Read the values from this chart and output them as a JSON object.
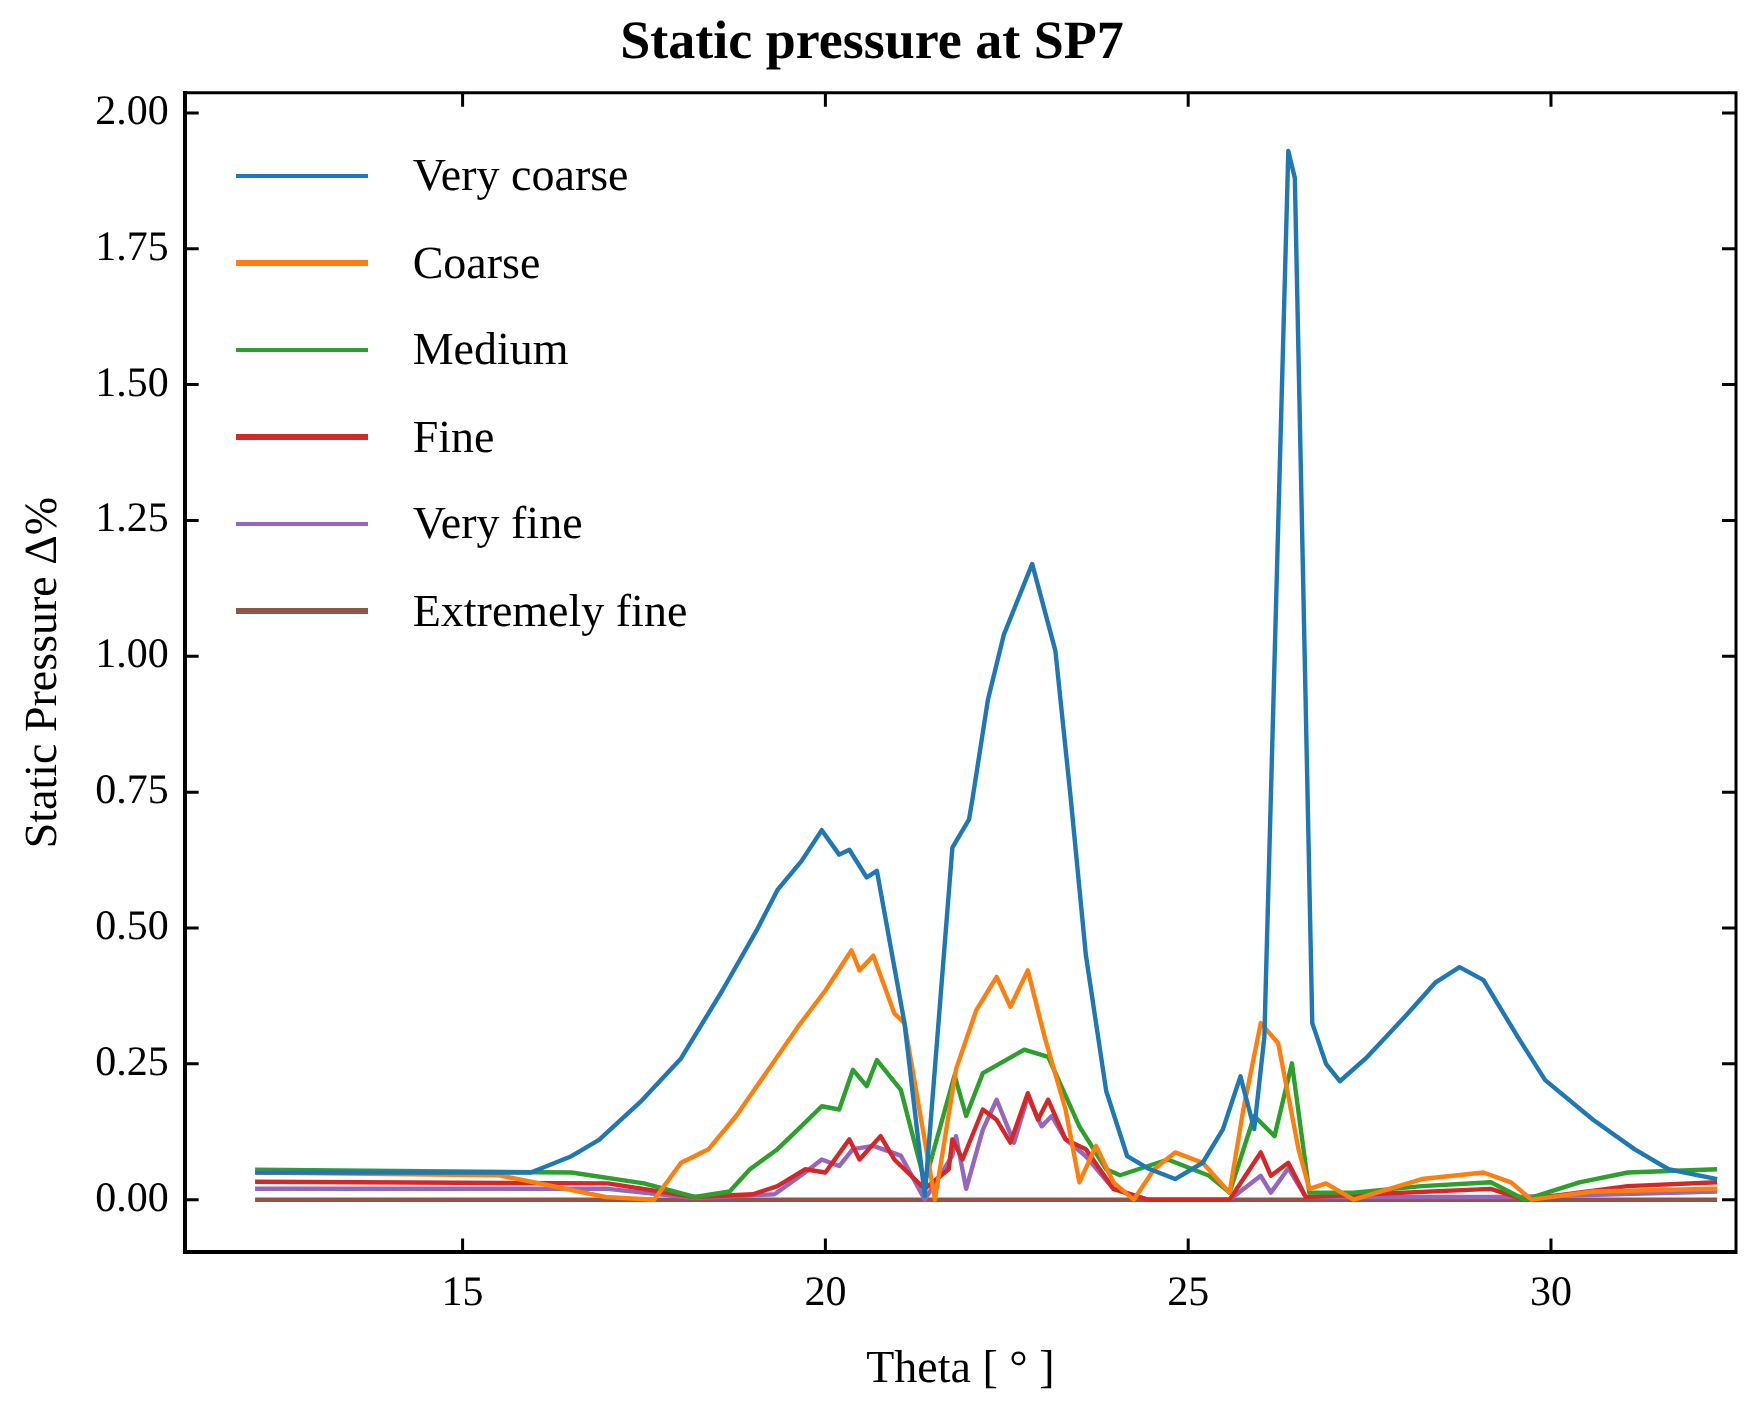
{
  "chart_data": {
    "type": "line",
    "title": "Static pressure at SP7",
    "xlabel": "Theta [ ° ]",
    "ylabel": "Static Pressure Δ%",
    "xlim": [
      11.17,
      32.55
    ],
    "xticks": [
      15,
      20,
      25,
      30
    ],
    "ylim": [
      -0.097,
      2.037
    ],
    "yticks": [
      {
        "value": 0,
        "label": "0.00"
      },
      {
        "value": 0.25,
        "label": "0.25"
      },
      {
        "value": 0.5,
        "label": "0.50"
      },
      {
        "value": 0.75,
        "label": "0.75"
      },
      {
        "value": 1,
        "label": "1.00"
      },
      {
        "value": 1.25,
        "label": "1.25"
      },
      {
        "value": 1.5,
        "label": "1.50"
      },
      {
        "value": 1.75,
        "label": "1.75"
      },
      {
        "value": 2,
        "label": "2.00"
      }
    ],
    "legend": "top left",
    "marker": "none",
    "line_style": "solid",
    "series": [
      {
        "name": "Very coarse",
        "color": "#1f77b4",
        "x": [
          12.14,
          15.94,
          16.5,
          16.88,
          17.45,
          18.01,
          18.58,
          19.05,
          19.34,
          19.67,
          19.95,
          20.19,
          20.33,
          20.57,
          20.71,
          21.09,
          21.37,
          21.75,
          21.98,
          22.03,
          22.24,
          22.46,
          22.85,
          23.17,
          23.38,
          23.59,
          23.87,
          24.16,
          24.44,
          24.82,
          25.2,
          25.48,
          25.72,
          25.91,
          26.05,
          26.38,
          26.47,
          26.71,
          26.9,
          27.09,
          27.47,
          28.03,
          28.41,
          28.74,
          29.07,
          29.54,
          29.92,
          30.58,
          31.15,
          31.62,
          32.29
        ],
        "values": [
          0.05,
          0.05,
          0.08,
          0.11,
          0.18,
          0.26,
          0.385,
          0.495,
          0.57,
          0.623,
          0.68,
          0.635,
          0.644,
          0.593,
          0.605,
          0.325,
          0.007,
          0.648,
          0.7,
          0.74,
          0.92,
          1.04,
          1.17,
          1.01,
          0.74,
          0.45,
          0.2,
          0.08,
          0.058,
          0.038,
          0.068,
          0.13,
          0.227,
          0.13,
          0.3,
          1.93,
          1.88,
          0.325,
          0.25,
          0.218,
          0.263,
          0.343,
          0.4,
          0.428,
          0.404,
          0.3,
          0.22,
          0.147,
          0.093,
          0.056,
          0.038
        ]
      },
      {
        "name": "Coarse",
        "color": "#ff7f0e",
        "x": [
          12.14,
          15.5,
          16.97,
          17.64,
          18.01,
          18.39,
          18.77,
          19.15,
          19.62,
          20.0,
          20.36,
          20.47,
          20.66,
          20.95,
          21.09,
          21.51,
          21.8,
          22.08,
          22.36,
          22.55,
          22.79,
          23.02,
          23.31,
          23.5,
          23.73,
          23.97,
          24.25,
          24.53,
          24.82,
          25.2,
          25.57,
          25.76,
          26.0,
          26.24,
          26.52,
          26.67,
          26.9,
          27.28,
          28.22,
          29.07,
          29.45,
          29.73,
          30.58,
          32.29
        ],
        "values": [
          0.05,
          0.045,
          0.005,
          0.0,
          0.068,
          0.093,
          0.154,
          0.227,
          0.318,
          0.385,
          0.459,
          0.422,
          0.449,
          0.343,
          0.325,
          0.0,
          0.24,
          0.349,
          0.41,
          0.355,
          0.422,
          0.3,
          0.166,
          0.032,
          0.099,
          0.032,
          0.0,
          0.056,
          0.087,
          0.068,
          0.013,
          0.166,
          0.325,
          0.288,
          0.093,
          0.02,
          0.03,
          0.0,
          0.038,
          0.05,
          0.032,
          0.0,
          0.015,
          0.02
        ]
      },
      {
        "name": "Medium",
        "color": "#2ca02c",
        "x": [
          12.14,
          16.5,
          17.5,
          18.2,
          18.68,
          18.96,
          19.34,
          19.62,
          19.95,
          20.19,
          20.38,
          20.57,
          20.71,
          21.04,
          21.37,
          21.78,
          21.94,
          22.17,
          22.74,
          23.07,
          23.5,
          23.87,
          24.06,
          24.72,
          25.29,
          25.57,
          25.91,
          26.19,
          26.43,
          26.67,
          27.28,
          28.22,
          29.17,
          29.64,
          30.39,
          31.06,
          32.29
        ],
        "values": [
          0.055,
          0.05,
          0.03,
          0.005,
          0.015,
          0.056,
          0.093,
          0.129,
          0.172,
          0.166,
          0.239,
          0.209,
          0.257,
          0.202,
          0.032,
          0.229,
          0.154,
          0.233,
          0.276,
          0.263,
          0.135,
          0.056,
          0.045,
          0.074,
          0.044,
          0.013,
          0.154,
          0.117,
          0.251,
          0.013,
          0.013,
          0.025,
          0.032,
          0.0,
          0.032,
          0.05,
          0.056
        ]
      },
      {
        "name": "Fine",
        "color": "#d62728",
        "x": [
          12.14,
          17.0,
          18.2,
          19.0,
          19.34,
          19.72,
          20.0,
          20.33,
          20.47,
          20.76,
          20.95,
          21.37,
          21.7,
          21.75,
          21.89,
          22.17,
          22.36,
          22.55,
          22.79,
          22.93,
          23.07,
          23.31,
          23.59,
          23.97,
          24.44,
          25.57,
          26.0,
          26.14,
          26.38,
          26.62,
          29.17,
          29.64,
          31.06,
          32.29
        ],
        "values": [
          0.033,
          0.03,
          0.005,
          0.01,
          0.025,
          0.056,
          0.05,
          0.111,
          0.074,
          0.117,
          0.074,
          0.02,
          0.056,
          0.111,
          0.074,
          0.166,
          0.147,
          0.105,
          0.196,
          0.147,
          0.184,
          0.111,
          0.093,
          0.02,
          0.0,
          0.0,
          0.087,
          0.044,
          0.068,
          0.005,
          0.02,
          0.0,
          0.025,
          0.032
        ]
      },
      {
        "name": "Very fine",
        "color": "#9467bd",
        "x": [
          12.14,
          17.0,
          18.2,
          19.3,
          19.72,
          19.95,
          20.19,
          20.38,
          20.66,
          21.04,
          21.37,
          21.75,
          21.8,
          21.94,
          22.17,
          22.36,
          22.6,
          22.79,
          22.98,
          23.12,
          23.31,
          23.59,
          23.97,
          24.44,
          25.57,
          26.0,
          26.14,
          26.38,
          26.62,
          29.5,
          32.29
        ],
        "values": [
          0.02,
          0.02,
          0.003,
          0.01,
          0.05,
          0.074,
          0.062,
          0.093,
          0.099,
          0.081,
          0.0,
          0.081,
          0.117,
          0.02,
          0.129,
          0.184,
          0.105,
          0.19,
          0.135,
          0.154,
          0.111,
          0.08,
          0.02,
          0.0,
          0.0,
          0.044,
          0.013,
          0.058,
          0.005,
          0.005,
          0.015
        ]
      },
      {
        "name": "Extremely fine",
        "color": "#8c564b",
        "x": [
          12.14,
          32.29
        ],
        "values": [
          0,
          0
        ]
      }
    ]
  }
}
